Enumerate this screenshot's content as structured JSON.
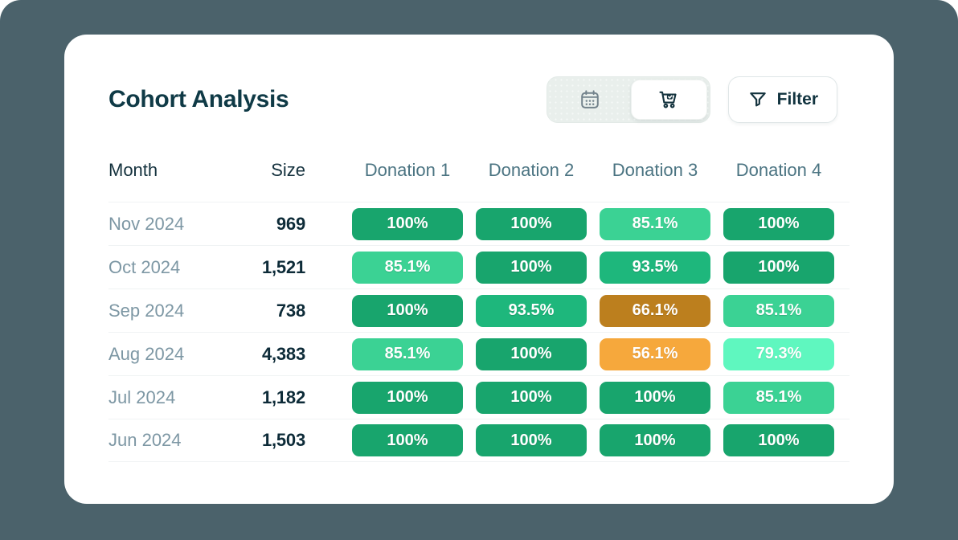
{
  "page": {
    "background_color": "#4b626b",
    "card_color": "#ffffff"
  },
  "header": {
    "title": "Cohort Analysis",
    "view_toggle": [
      {
        "id": "calendar-view",
        "icon": "calendar-icon",
        "selected": false
      },
      {
        "id": "cart-view",
        "icon": "cart-check-icon",
        "selected": true
      }
    ],
    "filter": {
      "label": "Filter",
      "icon": "funnel-icon"
    }
  },
  "badge_palette": {
    "green_dark": "#18a56d",
    "green_medium": "#1eb77c",
    "green_light": "#3bd294",
    "mint_pale": "#5ff7bf",
    "orange": "#f6a83c",
    "amber_dark": "#bc7f1e"
  },
  "table": {
    "columns": [
      "Month",
      "Size",
      "Donation 1",
      "Donation 2",
      "Donation 3",
      "Donation 4"
    ],
    "rows": [
      {
        "month": "Nov 2024",
        "size": "969",
        "donations": [
          {
            "value": "100%",
            "color": "#18a56d"
          },
          {
            "value": "100%",
            "color": "#18a56d"
          },
          {
            "value": "85.1%",
            "color": "#3bd294"
          },
          {
            "value": "100%",
            "color": "#18a56d"
          }
        ]
      },
      {
        "month": "Oct 2024",
        "size": "1,521",
        "donations": [
          {
            "value": "85.1%",
            "color": "#3bd294"
          },
          {
            "value": "100%",
            "color": "#18a56d"
          },
          {
            "value": "93.5%",
            "color": "#1eb77c"
          },
          {
            "value": "100%",
            "color": "#18a56d"
          }
        ]
      },
      {
        "month": "Sep 2024",
        "size": "738",
        "donations": [
          {
            "value": "100%",
            "color": "#18a56d"
          },
          {
            "value": "93.5%",
            "color": "#1eb77c"
          },
          {
            "value": "66.1%",
            "color": "#bc7f1e"
          },
          {
            "value": "85.1%",
            "color": "#3bd294"
          }
        ]
      },
      {
        "month": "Aug 2024",
        "size": "4,383",
        "donations": [
          {
            "value": "85.1%",
            "color": "#3bd294"
          },
          {
            "value": "100%",
            "color": "#18a56d"
          },
          {
            "value": "56.1%",
            "color": "#f6a83c"
          },
          {
            "value": "79.3%",
            "color": "#5ff7bf"
          }
        ]
      },
      {
        "month": "Jul 2024",
        "size": "1,182",
        "donations": [
          {
            "value": "100%",
            "color": "#18a56d"
          },
          {
            "value": "100%",
            "color": "#18a56d"
          },
          {
            "value": "100%",
            "color": "#18a56d"
          },
          {
            "value": "85.1%",
            "color": "#3bd294"
          }
        ]
      },
      {
        "month": "Jun 2024",
        "size": "1,503",
        "donations": [
          {
            "value": "100%",
            "color": "#18a56d"
          },
          {
            "value": "100%",
            "color": "#18a56d"
          },
          {
            "value": "100%",
            "color": "#18a56d"
          },
          {
            "value": "100%",
            "color": "#18a56d"
          }
        ]
      }
    ]
  }
}
